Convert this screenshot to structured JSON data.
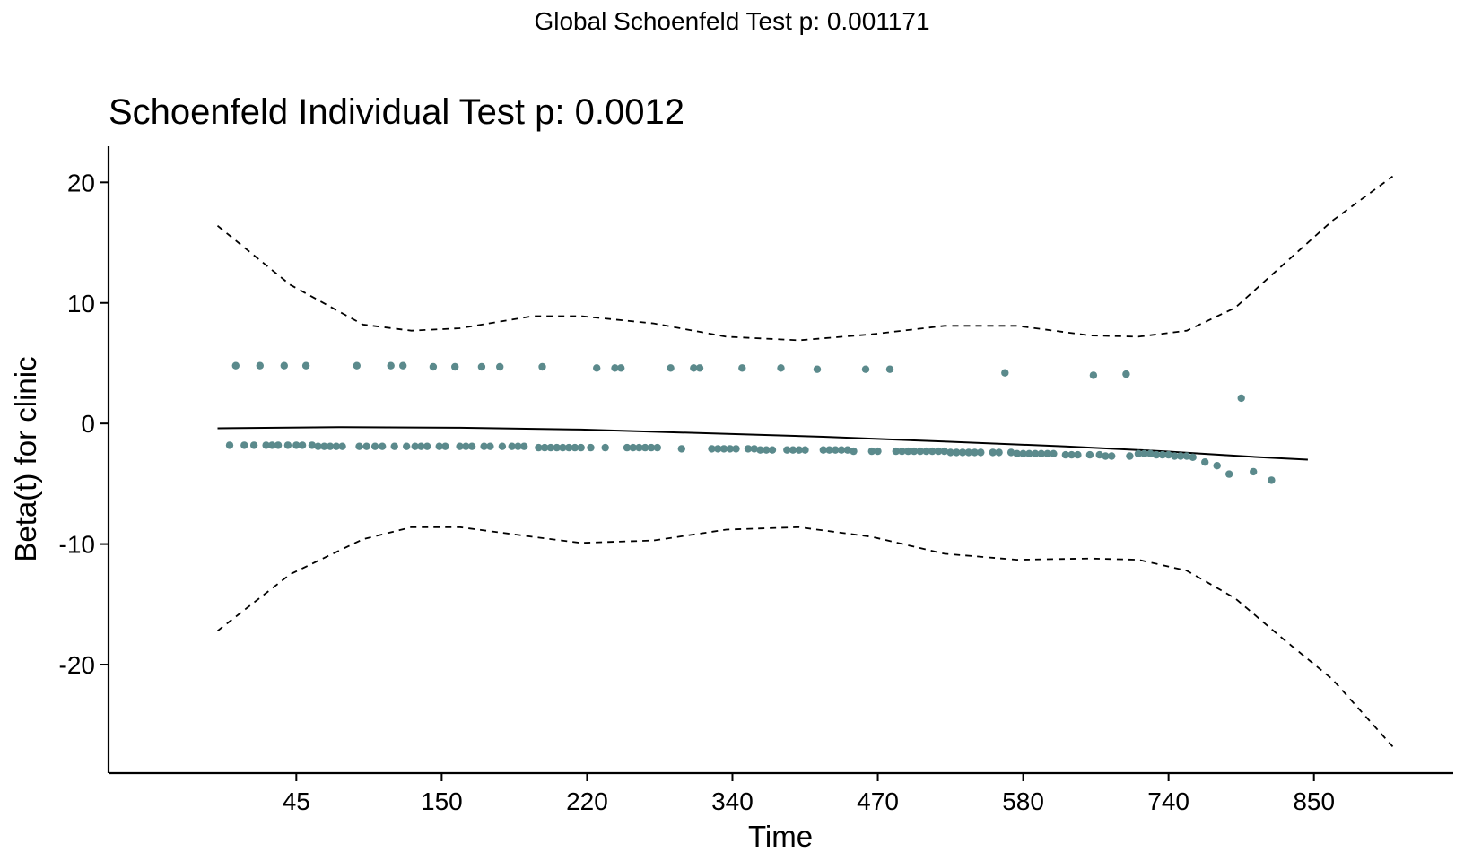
{
  "chart_data": {
    "type": "scatter",
    "suptitle": "Global Schoenfeld Test p: 0.001171",
    "title": "Schoenfeld Individual Test p: 0.0012",
    "xlabel": "Time",
    "ylabel": "Beta(t) for clinic",
    "ylim": [
      -29,
      23
    ],
    "yticks": [
      20,
      10,
      0,
      -10,
      -20
    ],
    "xtick_labels": [
      "45",
      "150",
      "220",
      "340",
      "470",
      "580",
      "740",
      "850"
    ],
    "xtick_rank": [
      6.5,
      18.5,
      30.5,
      42.5,
      54.5,
      66.5,
      78.5,
      90.5
    ],
    "xlim_rank": [
      -9,
      102
    ],
    "grid": false,
    "colors": {
      "points": "#5b8a8c",
      "lines": "#000000"
    },
    "points": [
      {
        "x": 1,
        "y": -1.8
      },
      {
        "x": 1.5,
        "y": 4.8
      },
      {
        "x": 2.2,
        "y": -1.8
      },
      {
        "x": 3,
        "y": -1.8
      },
      {
        "x": 3.5,
        "y": 4.8
      },
      {
        "x": 4,
        "y": -1.8
      },
      {
        "x": 4.5,
        "y": -1.8
      },
      {
        "x": 5,
        "y": -1.8
      },
      {
        "x": 5.5,
        "y": 4.8
      },
      {
        "x": 5.8,
        "y": -1.8
      },
      {
        "x": 6.5,
        "y": -1.8
      },
      {
        "x": 7,
        "y": -1.8
      },
      {
        "x": 7.3,
        "y": 4.8
      },
      {
        "x": 7.8,
        "y": -1.8
      },
      {
        "x": 8.3,
        "y": -1.9
      },
      {
        "x": 8.8,
        "y": -1.9
      },
      {
        "x": 9.3,
        "y": -1.9
      },
      {
        "x": 9.8,
        "y": -1.9
      },
      {
        "x": 10.3,
        "y": -1.9
      },
      {
        "x": 11.5,
        "y": 4.8
      },
      {
        "x": 11.7,
        "y": -1.9
      },
      {
        "x": 12.3,
        "y": -1.9
      },
      {
        "x": 13.0,
        "y": -1.9
      },
      {
        "x": 13.6,
        "y": -1.9
      },
      {
        "x": 14.3,
        "y": 4.8
      },
      {
        "x": 14.6,
        "y": -1.9
      },
      {
        "x": 15.3,
        "y": 4.8
      },
      {
        "x": 15.6,
        "y": -1.9
      },
      {
        "x": 16.3,
        "y": -1.9
      },
      {
        "x": 16.8,
        "y": -1.9
      },
      {
        "x": 17.3,
        "y": -1.9
      },
      {
        "x": 17.8,
        "y": 4.7
      },
      {
        "x": 18.3,
        "y": -1.9
      },
      {
        "x": 18.8,
        "y": -1.9
      },
      {
        "x": 19.6,
        "y": 4.7
      },
      {
        "x": 20.0,
        "y": -1.9
      },
      {
        "x": 20.5,
        "y": -1.9
      },
      {
        "x": 21.0,
        "y": -1.9
      },
      {
        "x": 21.8,
        "y": 4.7
      },
      {
        "x": 22.0,
        "y": -1.9
      },
      {
        "x": 22.5,
        "y": -1.9
      },
      {
        "x": 23.3,
        "y": 4.7
      },
      {
        "x": 23.5,
        "y": -1.9
      },
      {
        "x": 24.3,
        "y": -1.9
      },
      {
        "x": 24.8,
        "y": -1.9
      },
      {
        "x": 25.3,
        "y": -1.9
      },
      {
        "x": 26.8,
        "y": 4.7
      },
      {
        "x": 26.5,
        "y": -2.0
      },
      {
        "x": 27.0,
        "y": -2.0
      },
      {
        "x": 27.5,
        "y": -2.0
      },
      {
        "x": 28.0,
        "y": -2.0
      },
      {
        "x": 28.5,
        "y": -2.0
      },
      {
        "x": 29.0,
        "y": -2.0
      },
      {
        "x": 29.5,
        "y": -2.0
      },
      {
        "x": 30.0,
        "y": -2.0
      },
      {
        "x": 30.8,
        "y": -2.0
      },
      {
        "x": 31.3,
        "y": 4.6
      },
      {
        "x": 32.0,
        "y": -2.0
      },
      {
        "x": 32.8,
        "y": 4.6
      },
      {
        "x": 33.3,
        "y": 4.6
      },
      {
        "x": 33.8,
        "y": -2.0
      },
      {
        "x": 34.3,
        "y": -2.0
      },
      {
        "x": 34.8,
        "y": -2.0
      },
      {
        "x": 35.3,
        "y": -2.0
      },
      {
        "x": 35.8,
        "y": -2.0
      },
      {
        "x": 36.3,
        "y": -2.0
      },
      {
        "x": 37.4,
        "y": 4.6
      },
      {
        "x": 38.3,
        "y": -2.1
      },
      {
        "x": 39.3,
        "y": 4.6
      },
      {
        "x": 39.8,
        "y": 4.6
      },
      {
        "x": 40.8,
        "y": -2.1
      },
      {
        "x": 41.3,
        "y": -2.1
      },
      {
        "x": 41.8,
        "y": -2.1
      },
      {
        "x": 42.3,
        "y": -2.1
      },
      {
        "x": 42.8,
        "y": -2.1
      },
      {
        "x": 43.3,
        "y": 4.6
      },
      {
        "x": 43.8,
        "y": -2.1
      },
      {
        "x": 44.3,
        "y": -2.1
      },
      {
        "x": 44.8,
        "y": -2.2
      },
      {
        "x": 45.3,
        "y": -2.2
      },
      {
        "x": 45.8,
        "y": -2.2
      },
      {
        "x": 46.5,
        "y": 4.6
      },
      {
        "x": 47.0,
        "y": -2.2
      },
      {
        "x": 47.5,
        "y": -2.2
      },
      {
        "x": 48.0,
        "y": -2.2
      },
      {
        "x": 48.5,
        "y": -2.2
      },
      {
        "x": 49.5,
        "y": 4.5
      },
      {
        "x": 50.0,
        "y": -2.2
      },
      {
        "x": 50.5,
        "y": -2.2
      },
      {
        "x": 51.0,
        "y": -2.2
      },
      {
        "x": 51.5,
        "y": -2.2
      },
      {
        "x": 52.0,
        "y": -2.2
      },
      {
        "x": 52.5,
        "y": -2.3
      },
      {
        "x": 53.5,
        "y": 4.5
      },
      {
        "x": 54.0,
        "y": -2.3
      },
      {
        "x": 54.5,
        "y": -2.3
      },
      {
        "x": 55.5,
        "y": 4.5
      },
      {
        "x": 56.0,
        "y": -2.3
      },
      {
        "x": 56.5,
        "y": -2.3
      },
      {
        "x": 57.0,
        "y": -2.3
      },
      {
        "x": 57.5,
        "y": -2.3
      },
      {
        "x": 58.0,
        "y": -2.3
      },
      {
        "x": 58.5,
        "y": -2.3
      },
      {
        "x": 59.0,
        "y": -2.3
      },
      {
        "x": 59.5,
        "y": -2.3
      },
      {
        "x": 60.0,
        "y": -2.3
      },
      {
        "x": 60.5,
        "y": -2.4
      },
      {
        "x": 61.0,
        "y": -2.4
      },
      {
        "x": 61.5,
        "y": -2.4
      },
      {
        "x": 62.0,
        "y": -2.4
      },
      {
        "x": 62.5,
        "y": -2.4
      },
      {
        "x": 63.0,
        "y": -2.4
      },
      {
        "x": 64.0,
        "y": -2.4
      },
      {
        "x": 64.5,
        "y": -2.4
      },
      {
        "x": 65.0,
        "y": 4.2
      },
      {
        "x": 65.5,
        "y": -2.4
      },
      {
        "x": 66.0,
        "y": -2.5
      },
      {
        "x": 66.5,
        "y": -2.5
      },
      {
        "x": 67.0,
        "y": -2.5
      },
      {
        "x": 67.5,
        "y": -2.5
      },
      {
        "x": 68.0,
        "y": -2.5
      },
      {
        "x": 68.5,
        "y": -2.5
      },
      {
        "x": 69.0,
        "y": -2.5
      },
      {
        "x": 70.0,
        "y": -2.6
      },
      {
        "x": 70.5,
        "y": -2.6
      },
      {
        "x": 71.0,
        "y": -2.6
      },
      {
        "x": 72.0,
        "y": -2.6
      },
      {
        "x": 72.3,
        "y": 4.0
      },
      {
        "x": 72.8,
        "y": -2.6
      },
      {
        "x": 73.3,
        "y": -2.7
      },
      {
        "x": 73.8,
        "y": -2.7
      },
      {
        "x": 75.0,
        "y": 4.1
      },
      {
        "x": 75.3,
        "y": -2.7
      },
      {
        "x": 76.0,
        "y": -2.5
      },
      {
        "x": 76.5,
        "y": -2.5
      },
      {
        "x": 77.0,
        "y": -2.5
      },
      {
        "x": 77.5,
        "y": -2.6
      },
      {
        "x": 78.0,
        "y": -2.6
      },
      {
        "x": 78.5,
        "y": -2.6
      },
      {
        "x": 79.0,
        "y": -2.7
      },
      {
        "x": 79.5,
        "y": -2.7
      },
      {
        "x": 80.0,
        "y": -2.7
      },
      {
        "x": 80.5,
        "y": -2.8
      },
      {
        "x": 81.5,
        "y": -3.2
      },
      {
        "x": 82.5,
        "y": -3.5
      },
      {
        "x": 83.5,
        "y": -4.2
      },
      {
        "x": 84.5,
        "y": 2.1
      },
      {
        "x": 85.5,
        "y": -4.0
      },
      {
        "x": 87.0,
        "y": -4.7
      }
    ],
    "fit_line": [
      {
        "x": 0,
        "y": -0.4
      },
      {
        "x": 10,
        "y": -0.3
      },
      {
        "x": 20,
        "y": -0.35
      },
      {
        "x": 30,
        "y": -0.5
      },
      {
        "x": 40,
        "y": -0.8
      },
      {
        "x": 50,
        "y": -1.1
      },
      {
        "x": 60,
        "y": -1.5
      },
      {
        "x": 70,
        "y": -1.9
      },
      {
        "x": 78,
        "y": -2.3
      },
      {
        "x": 86,
        "y": -2.8
      },
      {
        "x": 90,
        "y": -3.0
      }
    ],
    "upper_band": [
      {
        "x": 0,
        "y": 16.4
      },
      {
        "x": 6,
        "y": 11.5
      },
      {
        "x": 12,
        "y": 8.2
      },
      {
        "x": 16,
        "y": 7.7
      },
      {
        "x": 20,
        "y": 7.9
      },
      {
        "x": 26,
        "y": 8.9
      },
      {
        "x": 30,
        "y": 8.9
      },
      {
        "x": 36,
        "y": 8.3
      },
      {
        "x": 42,
        "y": 7.2
      },
      {
        "x": 48,
        "y": 6.9
      },
      {
        "x": 54,
        "y": 7.4
      },
      {
        "x": 60,
        "y": 8.1
      },
      {
        "x": 66,
        "y": 8.1
      },
      {
        "x": 72,
        "y": 7.3
      },
      {
        "x": 76,
        "y": 7.2
      },
      {
        "x": 80,
        "y": 7.7
      },
      {
        "x": 84,
        "y": 9.6
      },
      {
        "x": 88,
        "y": 13.2
      },
      {
        "x": 92,
        "y": 16.8
      },
      {
        "x": 97,
        "y": 20.5
      }
    ],
    "lower_band": [
      {
        "x": 0,
        "y": -17.2
      },
      {
        "x": 6,
        "y": -12.5
      },
      {
        "x": 12,
        "y": -9.6
      },
      {
        "x": 16,
        "y": -8.6
      },
      {
        "x": 20,
        "y": -8.6
      },
      {
        "x": 26,
        "y": -9.4
      },
      {
        "x": 30,
        "y": -9.9
      },
      {
        "x": 36,
        "y": -9.7
      },
      {
        "x": 42,
        "y": -8.8
      },
      {
        "x": 48,
        "y": -8.6
      },
      {
        "x": 54,
        "y": -9.4
      },
      {
        "x": 60,
        "y": -10.8
      },
      {
        "x": 66,
        "y": -11.3
      },
      {
        "x": 72,
        "y": -11.2
      },
      {
        "x": 76,
        "y": -11.3
      },
      {
        "x": 80,
        "y": -12.2
      },
      {
        "x": 84,
        "y": -14.5
      },
      {
        "x": 88,
        "y": -17.9
      },
      {
        "x": 92,
        "y": -21.2
      },
      {
        "x": 97,
        "y": -26.8
      }
    ]
  }
}
